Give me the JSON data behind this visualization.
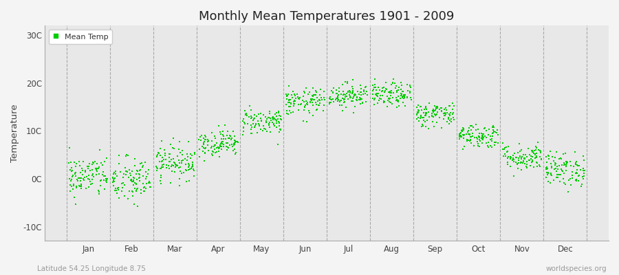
{
  "title": "Monthly Mean Temperatures 1901 - 2009",
  "ylabel": "Temperature",
  "xlabel_labels": [
    "Jan",
    "Feb",
    "Mar",
    "Apr",
    "May",
    "Jun",
    "Jul",
    "Aug",
    "Sep",
    "Oct",
    "Nov",
    "Dec"
  ],
  "ytick_labels": [
    "-10C",
    "0C",
    "10C",
    "20C",
    "30C"
  ],
  "ytick_values": [
    -10,
    0,
    10,
    20,
    30
  ],
  "ylim": [
    -13,
    32
  ],
  "legend_label": "Mean Temp",
  "dot_color": "#00CC00",
  "dot_size": 3,
  "background_color": "#f4f4f4",
  "plot_bg_color": "#e8e8e8",
  "grid_color": "#888888",
  "subtitle_left": "Latitude 54.25 Longitude 8.75",
  "subtitle_right": "worldspecies.org",
  "start_year": 1901,
  "end_year": 2009,
  "monthly_means": [
    0.5,
    -0.5,
    3.5,
    7.5,
    12.0,
    16.0,
    17.5,
    17.5,
    13.5,
    9.0,
    4.5,
    2.0
  ],
  "monthly_stds": [
    2.2,
    2.5,
    1.8,
    1.4,
    1.4,
    1.4,
    1.3,
    1.3,
    1.3,
    1.3,
    1.4,
    1.8
  ]
}
